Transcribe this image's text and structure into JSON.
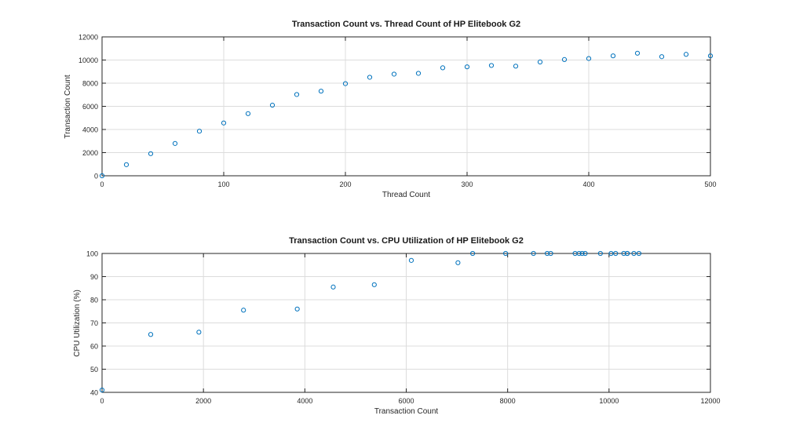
{
  "chart_data": [
    {
      "type": "scatter",
      "title": "Transaction Count vs. Thread Count of HP Elitebook G2",
      "xlabel": "Thread Count",
      "ylabel": "Transaction Count",
      "xlim": [
        0,
        500
      ],
      "ylim": [
        0,
        12000
      ],
      "xticks": [
        0,
        100,
        200,
        300,
        400,
        500
      ],
      "yticks": [
        0,
        2000,
        4000,
        6000,
        8000,
        10000,
        12000
      ],
      "grid": true,
      "marker_color": "#0072bd",
      "series": [
        {
          "x": [
            0,
            20,
            40,
            60,
            80,
            100,
            120,
            140,
            160,
            180,
            200,
            220,
            240,
            260,
            280,
            300,
            320,
            340,
            360,
            380,
            400,
            420,
            440,
            460,
            480,
            500
          ],
          "y": [
            0,
            960,
            1910,
            2790,
            3850,
            4560,
            5370,
            6100,
            7020,
            7310,
            7960,
            8510,
            8780,
            8850,
            9330,
            9410,
            9530,
            9470,
            9830,
            10040,
            10130,
            10360,
            10590,
            10290,
            10490,
            10360
          ]
        }
      ]
    },
    {
      "type": "scatter",
      "title": "Transaction Count vs. CPU Utilization of HP Elitebook G2",
      "xlabel": "Transaction Count",
      "ylabel": "CPU Utilization (%)",
      "xlim": [
        0,
        12000
      ],
      "ylim": [
        40,
        100
      ],
      "xticks": [
        0,
        2000,
        4000,
        6000,
        8000,
        10000,
        12000
      ],
      "yticks": [
        40,
        50,
        60,
        70,
        80,
        90,
        100
      ],
      "grid": true,
      "marker_color": "#0072bd",
      "series": [
        {
          "x": [
            0,
            960,
            1910,
            2790,
            3850,
            4560,
            5370,
            6100,
            7020,
            7310,
            7960,
            8510,
            8780,
            8850,
            9330,
            9410,
            9470,
            9530,
            9830,
            10040,
            10130,
            10290,
            10360,
            10360,
            10490,
            10590
          ],
          "y": [
            41,
            65,
            66,
            75.5,
            76,
            85.5,
            86.5,
            97,
            96,
            100,
            100,
            100,
            100,
            100,
            100,
            100,
            100,
            100,
            100,
            100,
            100,
            100,
            100,
            100,
            100,
            100
          ]
        }
      ]
    }
  ]
}
